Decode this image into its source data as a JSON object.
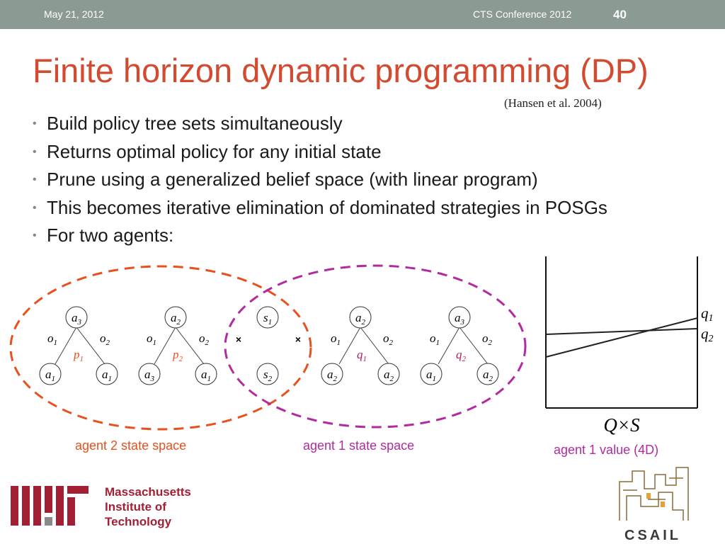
{
  "header": {
    "date": "May 21, 2012",
    "conference": "CTS Conference 2012",
    "page_number": "40"
  },
  "title": "Finite horizon dynamic programming (DP)",
  "citation": "(Hansen et al. 2004)",
  "bullets": [
    "Build policy tree sets simultaneously",
    "Returns optimal policy for any initial state",
    "Prune using a generalized belief space (with linear program)",
    "This becomes iterative elimination of dominated strategies in POSGs",
    "For two agents:"
  ],
  "trees": {
    "p1": {
      "policy": "p",
      "sub": "1",
      "root": "a",
      "root_sub": "3",
      "left_obs": "o",
      "left_obs_sub": "1",
      "right_obs": "o",
      "right_obs_sub": "2",
      "left_child": "a",
      "left_child_sub": "1",
      "right_child": "a",
      "right_child_sub": "1"
    },
    "p2": {
      "policy": "p",
      "sub": "2",
      "root": "a",
      "root_sub": "2",
      "left_obs": "o",
      "left_obs_sub": "1",
      "right_obs": "o",
      "right_obs_sub": "2",
      "left_child": "a",
      "left_child_sub": "3",
      "right_child": "a",
      "right_child_sub": "1"
    },
    "q1": {
      "policy": "q",
      "sub": "1",
      "root": "a",
      "root_sub": "2",
      "left_obs": "o",
      "left_obs_sub": "1",
      "right_obs": "o",
      "right_obs_sub": "2",
      "left_child": "a",
      "left_child_sub": "2",
      "right_child": "a",
      "right_child_sub": "2"
    },
    "q2": {
      "policy": "q",
      "sub": "2",
      "root": "a",
      "root_sub": "3",
      "left_obs": "o",
      "left_obs_sub": "1",
      "right_obs": "o",
      "right_obs_sub": "2",
      "left_child": "a",
      "left_child_sub": "1",
      "right_child": "a",
      "right_child_sub": "2"
    }
  },
  "states": {
    "s1": "s",
    "s1_sub": "1",
    "s2": "s",
    "s2_sub": "2"
  },
  "cross_symbol": "×",
  "captions": {
    "agent2": "agent 2 state space",
    "agent1": "agent 1 state space",
    "value": "agent 1 value (4D)"
  },
  "value_plot": {
    "x_label": "Q×S",
    "line_labels": [
      {
        "name": "q",
        "sub": "1"
      },
      {
        "name": "q",
        "sub": "2"
      }
    ]
  },
  "logos": {
    "mit_line1": "Massachusetts",
    "mit_line2": "Institute of",
    "mit_line3": "Technology",
    "csail": "CSAIL"
  },
  "colors": {
    "header_bg": "#8c9a94",
    "title": "#d24a2f",
    "agent2_ellipse": "#e8501e",
    "agent1_ellipse": "#b22aa0",
    "p_label": "#e8501e",
    "q_label": "#b02060",
    "mit_red": "#a31f34"
  }
}
